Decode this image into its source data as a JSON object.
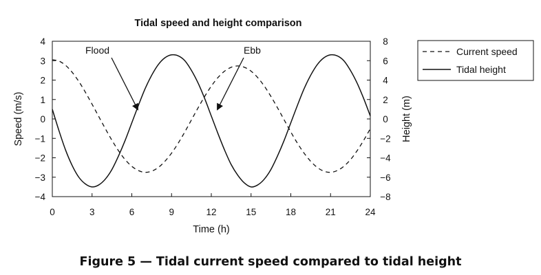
{
  "chart_data": {
    "type": "line",
    "title": "Tidal speed and height comparison",
    "xlabel": "Time (h)",
    "ylabel_left": "Speed (m/s)",
    "ylabel_right": "Height (m)",
    "xlim": [
      0,
      24
    ],
    "ylim_left": [
      -4,
      4
    ],
    "ylim_right": [
      -8,
      8
    ],
    "xticks": [
      "0",
      "3",
      "6",
      "9",
      "12",
      "15",
      "18",
      "21",
      "24"
    ],
    "yticks_left": [
      "−4",
      "−3",
      "−2",
      "−1",
      "0",
      "1",
      "2",
      "3",
      "4"
    ],
    "yticks_right": [
      "−8",
      "−6",
      "−4",
      "−2",
      "0",
      "2",
      "4",
      "6",
      "8"
    ],
    "grid": false,
    "legend_position": "right",
    "series": [
      {
        "name": "Current speed",
        "axis": "left",
        "style": "dashed",
        "x": [
          0,
          0.5,
          1,
          1.5,
          2,
          2.5,
          3,
          3.5,
          4,
          4.5,
          5,
          5.5,
          6,
          6.5,
          7,
          7.5,
          8,
          8.5,
          9,
          9.5,
          10,
          10.5,
          11,
          11.5,
          12,
          12.5,
          13,
          13.5,
          14,
          14.5,
          15,
          15.5,
          16,
          16.5,
          17,
          17.5,
          18,
          18.5,
          19,
          19.5,
          20,
          20.5,
          21,
          21.5,
          22,
          22.5,
          23,
          23.5,
          24
        ],
        "y": [
          3.05,
          2.98,
          2.76,
          2.4,
          1.93,
          1.37,
          0.76,
          0.13,
          -0.5,
          -1.1,
          -1.64,
          -2.1,
          -2.44,
          -2.66,
          -2.75,
          -2.69,
          -2.5,
          -2.18,
          -1.76,
          -1.25,
          -0.67,
          -0.05,
          0.57,
          1.16,
          1.69,
          2.13,
          2.46,
          2.66,
          2.73,
          2.66,
          2.46,
          2.13,
          1.69,
          1.16,
          0.57,
          -0.05,
          -0.67,
          -1.25,
          -1.76,
          -2.18,
          -2.5,
          -2.69,
          -2.75,
          -2.66,
          -2.44,
          -2.1,
          -1.64,
          -1.1,
          -0.5
        ]
      },
      {
        "name": "Tidal height",
        "axis": "right",
        "style": "solid",
        "x": [
          0,
          0.5,
          1,
          1.5,
          2,
          2.5,
          3,
          3.5,
          4,
          4.5,
          5,
          5.5,
          6,
          6.5,
          7,
          7.5,
          8,
          8.5,
          9,
          9.5,
          10,
          10.5,
          11,
          11.5,
          12,
          12.5,
          13,
          13.5,
          14,
          14.5,
          15,
          15.5,
          16,
          16.5,
          17,
          17.5,
          18,
          18.5,
          19,
          19.5,
          20,
          20.5,
          21,
          21.5,
          22,
          22.5,
          23,
          23.5,
          24
        ],
        "y": [
          1.0,
          -1.2,
          -3.2,
          -4.8,
          -6.0,
          -6.7,
          -7.0,
          -6.8,
          -6.2,
          -5.2,
          -3.8,
          -2.2,
          -0.4,
          1.4,
          3.1,
          4.5,
          5.6,
          6.3,
          6.6,
          6.5,
          6.0,
          5.0,
          3.7,
          2.1,
          0.3,
          -1.5,
          -3.2,
          -4.7,
          -5.8,
          -6.6,
          -7.0,
          -6.8,
          -6.2,
          -5.2,
          -3.8,
          -2.2,
          -0.4,
          1.4,
          3.1,
          4.5,
          5.6,
          6.3,
          6.6,
          6.5,
          6.0,
          5.0,
          3.7,
          2.1,
          0.3
        ]
      }
    ],
    "annotations": [
      {
        "text": "Flood",
        "x": 6.6,
        "axis": "right",
        "y": 0.0
      },
      {
        "text": "Ebb",
        "x": 12.9,
        "axis": "right",
        "y": 0.0
      }
    ]
  },
  "caption": "Figure 5 — Tidal current speed compared to tidal height"
}
